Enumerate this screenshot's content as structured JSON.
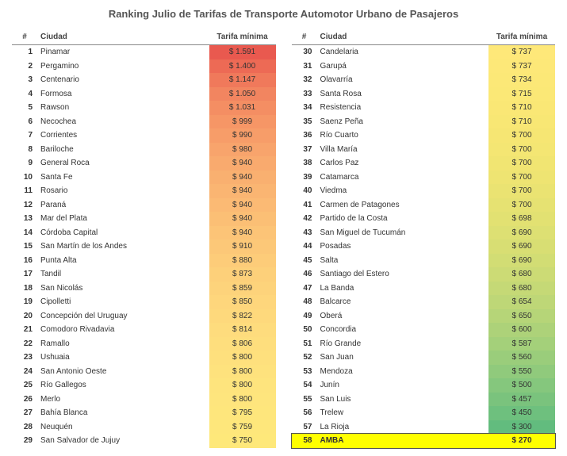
{
  "title": "Ranking Julio de Tarifas de Transporte Automotor Urbano de Pasajeros",
  "headers": {
    "rank": "#",
    "city": "Ciudad",
    "tarifa": "Tarifa mínima"
  },
  "left": [
    {
      "r": "1",
      "c": "Pinamar",
      "t": "$ 1.591",
      "bg": "#e9594f"
    },
    {
      "r": "2",
      "c": "Pergamino",
      "t": "$ 1.400",
      "bg": "#ed6a55"
    },
    {
      "r": "3",
      "c": "Centenario",
      "t": "$ 1.147",
      "bg": "#f0795b"
    },
    {
      "r": "4",
      "c": "Formosa",
      "t": "$ 1.050",
      "bg": "#f28560"
    },
    {
      "r": "5",
      "c": "Rawson",
      "t": "$ 1.031",
      "bg": "#f48e63"
    },
    {
      "r": "6",
      "c": "Necochea",
      "t": "$ 999",
      "bg": "#f69666"
    },
    {
      "r": "7",
      "c": "Corrientes",
      "t": "$ 990",
      "bg": "#f79d69"
    },
    {
      "r": "8",
      "c": "Bariloche",
      "t": "$ 980",
      "bg": "#f8a46c"
    },
    {
      "r": "9",
      "c": "General Roca",
      "t": "$ 940",
      "bg": "#f9aa6e"
    },
    {
      "r": "10",
      "c": "Santa Fe",
      "t": "$ 940",
      "bg": "#f9b070"
    },
    {
      "r": "11",
      "c": "Rosario",
      "t": "$ 940",
      "bg": "#fab572"
    },
    {
      "r": "12",
      "c": "Paraná",
      "t": "$ 940",
      "bg": "#fbba74"
    },
    {
      "r": "13",
      "c": "Mar del Plata",
      "t": "$ 940",
      "bg": "#fbbf75"
    },
    {
      "r": "14",
      "c": "Córdoba Capital",
      "t": "$ 940",
      "bg": "#fcc477"
    },
    {
      "r": "15",
      "c": "San Martín de los Andes",
      "t": "$ 910",
      "bg": "#fcc878"
    },
    {
      "r": "16",
      "c": "Punta Alta",
      "t": "$ 880",
      "bg": "#fdcc79"
    },
    {
      "r": "17",
      "c": "Tandil",
      "t": "$ 873",
      "bg": "#fdd07a"
    },
    {
      "r": "18",
      "c": "San Nicolás",
      "t": "$ 859",
      "bg": "#fdd37b"
    },
    {
      "r": "19",
      "c": "Cipolletti",
      "t": "$ 850",
      "bg": "#fed67c"
    },
    {
      "r": "20",
      "c": "Concepción del Uruguay",
      "t": "$ 822",
      "bg": "#fed97c"
    },
    {
      "r": "21",
      "c": "Comodoro Rivadavia",
      "t": "$ 814",
      "bg": "#fedc7d"
    },
    {
      "r": "22",
      "c": "Ramallo",
      "t": "$ 806",
      "bg": "#fede7d"
    },
    {
      "r": "23",
      "c": "Ushuaia",
      "t": "$ 800",
      "bg": "#fee07d"
    },
    {
      "r": "24",
      "c": "San Antonio Oeste",
      "t": "$ 800",
      "bg": "#fee27d"
    },
    {
      "r": "25",
      "c": "Río Gallegos",
      "t": "$ 800",
      "bg": "#fee47d"
    },
    {
      "r": "26",
      "c": "Merlo",
      "t": "$ 800",
      "bg": "#fee57d"
    },
    {
      "r": "27",
      "c": "Bahía Blanca",
      "t": "$ 795",
      "bg": "#fee67c"
    },
    {
      "r": "28",
      "c": "Neuquén",
      "t": "$ 759",
      "bg": "#fee77b"
    },
    {
      "r": "29",
      "c": "San Salvador de Jujuy",
      "t": "$ 750",
      "bg": "#fee87a"
    }
  ],
  "right": [
    {
      "r": "30",
      "c": "Candelaria",
      "t": "$ 737",
      "bg": "#fee879"
    },
    {
      "r": "31",
      "c": "Garupá",
      "t": "$ 737",
      "bg": "#fde878"
    },
    {
      "r": "32",
      "c": "Olavarría",
      "t": "$ 734",
      "bg": "#fce877"
    },
    {
      "r": "33",
      "c": "Santa Rosa",
      "t": "$ 715",
      "bg": "#fbe876"
    },
    {
      "r": "34",
      "c": "Resistencia",
      "t": "$ 710",
      "bg": "#fae775"
    },
    {
      "r": "35",
      "c": "Saenz Peña",
      "t": "$ 710",
      "bg": "#f8e774"
    },
    {
      "r": "36",
      "c": "Río Cuarto",
      "t": "$ 700",
      "bg": "#f6e673"
    },
    {
      "r": "37",
      "c": "Villa María",
      "t": "$ 700",
      "bg": "#f4e673"
    },
    {
      "r": "38",
      "c": "Carlos Paz",
      "t": "$ 700",
      "bg": "#f1e572"
    },
    {
      "r": "39",
      "c": "Catamarca",
      "t": "$ 700",
      "bg": "#eee472"
    },
    {
      "r": "40",
      "c": "Viedma",
      "t": "$ 700",
      "bg": "#eae372"
    },
    {
      "r": "41",
      "c": "Carmen de Patagones",
      "t": "$ 700",
      "bg": "#e6e272"
    },
    {
      "r": "42",
      "c": "Partido de la Costa",
      "t": "$ 698",
      "bg": "#e2e172"
    },
    {
      "r": "43",
      "c": "San Miguel de Tucumán",
      "t": "$ 690",
      "bg": "#dde073"
    },
    {
      "r": "44",
      "c": "Posadas",
      "t": "$ 690",
      "bg": "#d8de73"
    },
    {
      "r": "45",
      "c": "Salta",
      "t": "$ 690",
      "bg": "#d2dd74"
    },
    {
      "r": "46",
      "c": "Santiago del Estero",
      "t": "$ 680",
      "bg": "#ccdb75"
    },
    {
      "r": "47",
      "c": "La Banda",
      "t": "$ 680",
      "bg": "#c5d976"
    },
    {
      "r": "48",
      "c": "Balcarce",
      "t": "$ 654",
      "bg": "#bed777"
    },
    {
      "r": "49",
      "c": "Oberá",
      "t": "$ 650",
      "bg": "#b6d578"
    },
    {
      "r": "50",
      "c": "Concordia",
      "t": "$ 600",
      "bg": "#add279"
    },
    {
      "r": "51",
      "c": "Río Grande",
      "t": "$ 587",
      "bg": "#a4d07a"
    },
    {
      "r": "52",
      "c": "San Juan",
      "t": "$ 560",
      "bg": "#9acd7b"
    },
    {
      "r": "53",
      "c": "Mendoza",
      "t": "$ 550",
      "bg": "#90ca7c"
    },
    {
      "r": "54",
      "c": "Junín",
      "t": "$ 500",
      "bg": "#85c77d"
    },
    {
      "r": "55",
      "c": "San Luis",
      "t": "$ 457",
      "bg": "#7ac37d"
    },
    {
      "r": "56",
      "c": "Trelew",
      "t": "$ 450",
      "bg": "#6ec07e"
    },
    {
      "r": "57",
      "c": "La Rioja",
      "t": "$ 300",
      "bg": "#62bc7e"
    },
    {
      "r": "58",
      "c": "AMBA",
      "t": "$ 270",
      "bg": "#56b87e",
      "hl": true
    }
  ]
}
